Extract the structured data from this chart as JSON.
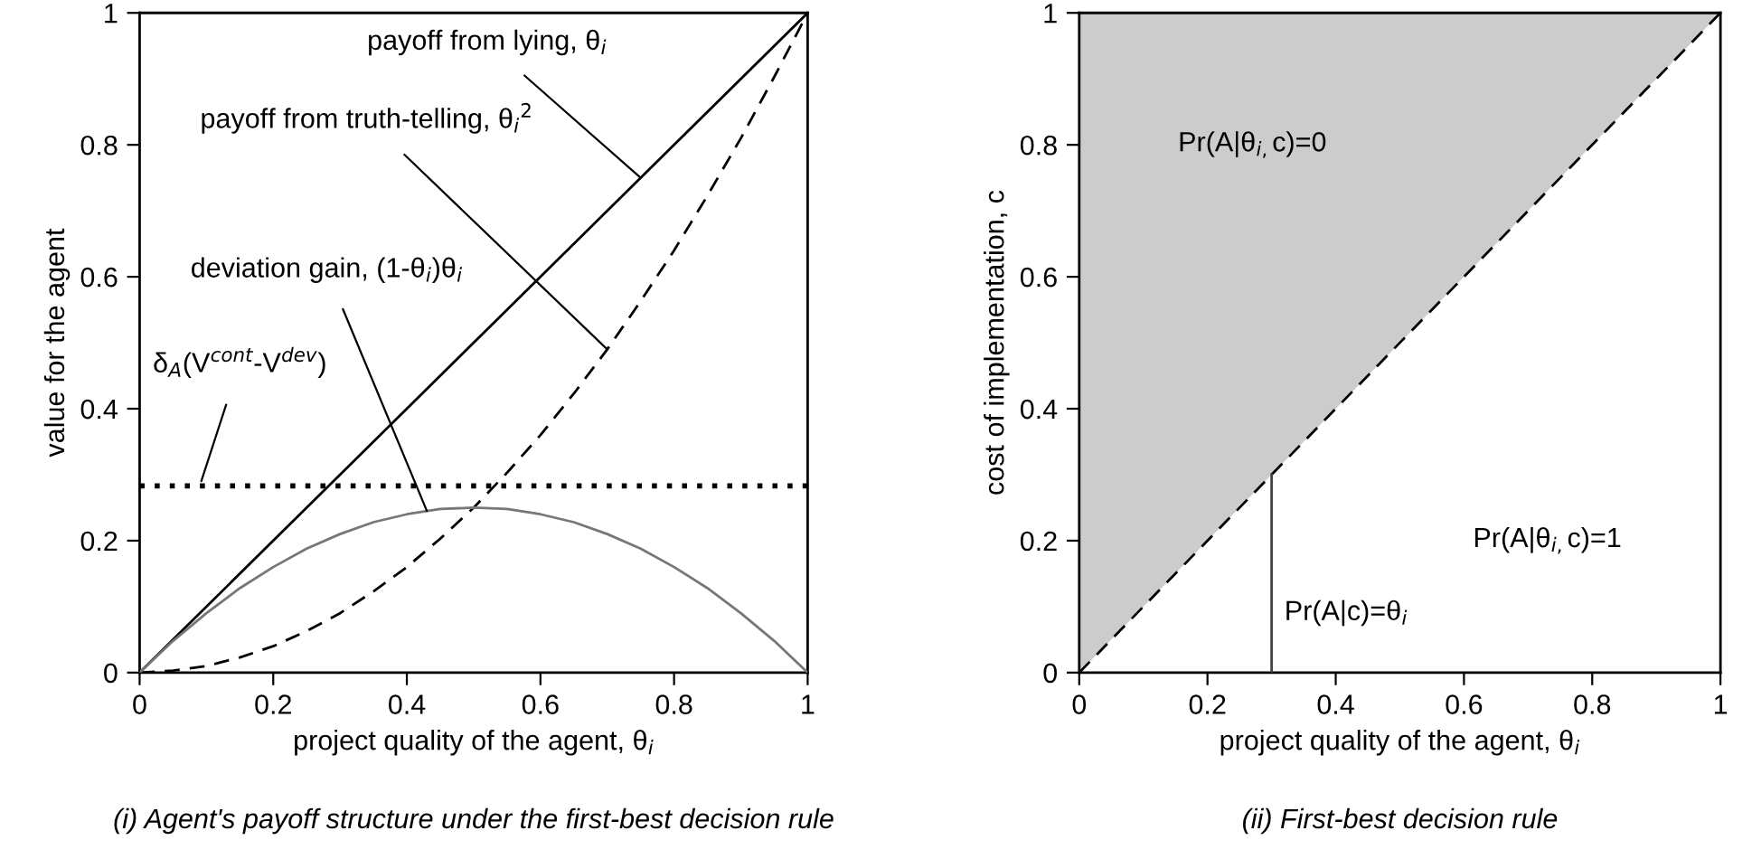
{
  "chart_data": [
    {
      "type": "line",
      "xlabel": "project quality of the agent, θ$_{i}$",
      "ylabel": "value for the agent",
      "xlim": [
        0,
        1
      ],
      "ylim": [
        0,
        1
      ],
      "xticks": [
        0,
        0.2,
        0.4,
        0.6,
        0.8,
        1
      ],
      "yticks": [
        0,
        0.2,
        0.4,
        0.6,
        0.8,
        1
      ],
      "x": [
        0,
        0.05,
        0.1,
        0.15,
        0.2,
        0.25,
        0.3,
        0.35,
        0.4,
        0.45,
        0.5,
        0.55,
        0.6,
        0.65,
        0.7,
        0.75,
        0.8,
        0.85,
        0.9,
        0.95,
        1
      ],
      "series": [
        {
          "x": [
            0,
            1
          ],
          "values": [
            0,
            1
          ],
          "color": "#000000",
          "line_style": "solid"
        },
        {
          "values": [
            0,
            0.003,
            0.01,
            0.023,
            0.04,
            0.063,
            0.09,
            0.123,
            0.16,
            0.203,
            0.25,
            0.303,
            0.36,
            0.423,
            0.49,
            0.563,
            0.64,
            0.723,
            0.81,
            0.903,
            1
          ],
          "color": "#000000",
          "line_style": "dashed"
        },
        {
          "values": [
            0,
            0.048,
            0.09,
            0.128,
            0.16,
            0.188,
            0.21,
            0.228,
            0.24,
            0.248,
            0.25,
            0.248,
            0.24,
            0.228,
            0.21,
            0.188,
            0.16,
            0.128,
            0.09,
            0.048,
            0
          ],
          "color": "#777777",
          "line_style": "solid"
        }
      ],
      "ref_lines": [
        {
          "axis": "y",
          "value": 0.283,
          "label": "δ$_{A}$(V$^{cont}$-V$^{dev}$)",
          "color": "#000000",
          "line_style": "dotted"
        }
      ],
      "annotations": [
        {
          "text": "payoff from lying, θ$_{i}$",
          "x": 0.75,
          "y": 0.75
        },
        {
          "text": "payoff from truth-telling, θ$_{i}$$^{2}$",
          "x": 0.7,
          "y": 0.49
        },
        {
          "text": "deviation gain, (1-θ$_{i}$)θ$_{i}$",
          "x": 0.43,
          "y": 0.245
        },
        "(i) Agent's payoff structure under the first-best decision rule"
      ]
    },
    {
      "type": "line",
      "xlabel": "project quality of the agent, θ$_{i}$",
      "ylabel": "cost of implementation, c",
      "xlim": [
        0,
        1
      ],
      "ylim": [
        0,
        1
      ],
      "xticks": [
        0,
        0.2,
        0.4,
        0.6,
        0.8,
        1
      ],
      "yticks": [
        0,
        0.2,
        0.4,
        0.6,
        0.8,
        1
      ],
      "series": [
        {
          "x": [
            0,
            1
          ],
          "values": [
            0,
            1
          ],
          "lower": [
            0,
            1
          ],
          "upper": [
            1,
            1
          ],
          "color": "#000000",
          "line_style": "dashed"
        },
        {
          "x": [
            0.3,
            0.3
          ],
          "values": [
            0,
            0.3
          ],
          "color": "#444444",
          "line_style": "solid"
        }
      ],
      "annotations": [
        "Pr(A|θ$_{i,}$c)=0",
        "Pr(A|θ$_{i,}$c)=1",
        "Pr(A|c)=θ$_{i}$",
        "(ii) First-best decision rule"
      ]
    }
  ]
}
